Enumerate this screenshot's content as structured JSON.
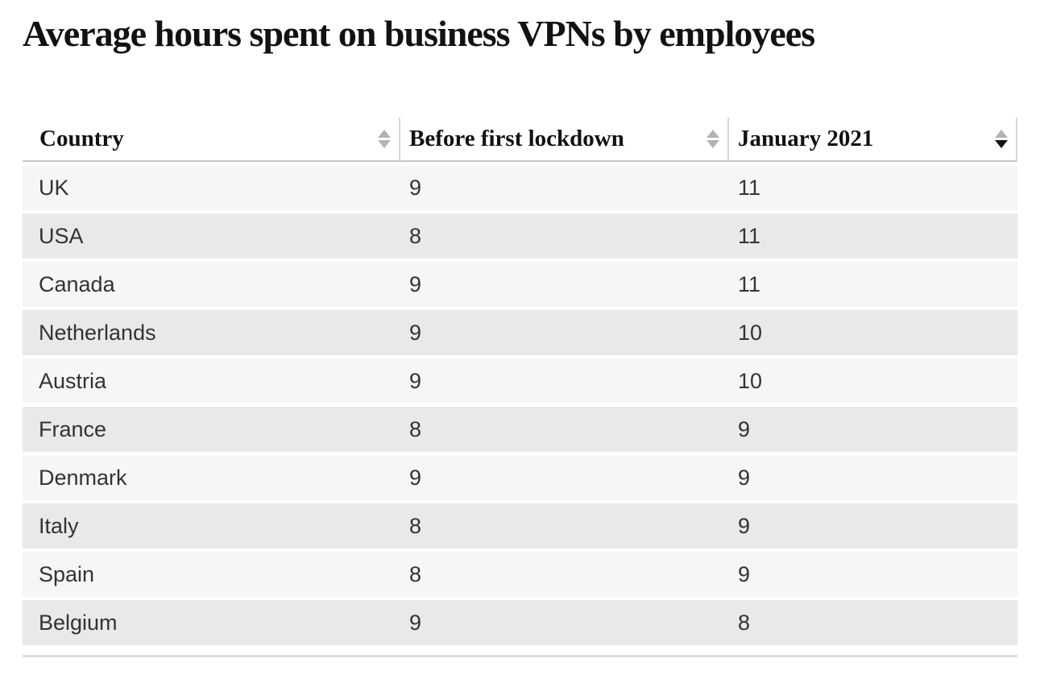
{
  "page": {
    "title": "Average hours spent on business VPNs by employees"
  },
  "table": {
    "columns": [
      {
        "label": "Country",
        "sort": "none"
      },
      {
        "label": "Before first lockdown",
        "sort": "none"
      },
      {
        "label": "January 2021",
        "sort": "desc"
      }
    ],
    "rows": [
      {
        "country": "UK",
        "before": "9",
        "jan2021": "11"
      },
      {
        "country": "USA",
        "before": "8",
        "jan2021": "11"
      },
      {
        "country": "Canada",
        "before": "9",
        "jan2021": "11"
      },
      {
        "country": "Netherlands",
        "before": "9",
        "jan2021": "10"
      },
      {
        "country": "Austria",
        "before": "9",
        "jan2021": "10"
      },
      {
        "country": "France",
        "before": "8",
        "jan2021": "9"
      },
      {
        "country": "Denmark",
        "before": "9",
        "jan2021": "9"
      },
      {
        "country": "Italy",
        "before": "8",
        "jan2021": "9"
      },
      {
        "country": "Spain",
        "before": "8",
        "jan2021": "9"
      },
      {
        "country": "Belgium",
        "before": "9",
        "jan2021": "8"
      }
    ]
  },
  "colors": {
    "title_text": "#121212",
    "body_text": "#333333",
    "row_light": "#f6f6f6",
    "row_dark": "#e9e9e9",
    "header_divider": "#d7d7d7",
    "header_border": "#c6c6c6",
    "sort_inactive": "#b3b3b3",
    "sort_active": "#121212"
  },
  "chart_data": {
    "type": "table",
    "title": "Average hours spent on business VPNs by employees",
    "columns": [
      "Country",
      "Before first lockdown",
      "January 2021"
    ],
    "categories": [
      "UK",
      "USA",
      "Canada",
      "Netherlands",
      "Austria",
      "France",
      "Denmark",
      "Italy",
      "Spain",
      "Belgium"
    ],
    "series": [
      {
        "name": "Before first lockdown",
        "values": [
          9,
          8,
          9,
          9,
          9,
          8,
          9,
          8,
          8,
          9
        ]
      },
      {
        "name": "January 2021",
        "values": [
          11,
          11,
          11,
          10,
          10,
          9,
          9,
          9,
          9,
          8
        ]
      }
    ],
    "sort": {
      "column": "January 2021",
      "direction": "desc"
    }
  }
}
